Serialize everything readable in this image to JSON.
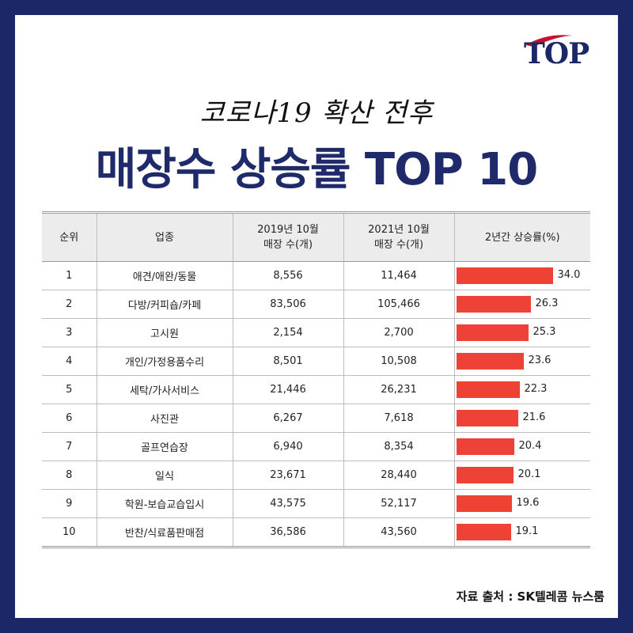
{
  "logo": {
    "text": "TOP"
  },
  "subtitle": "코로나19 확산 전후",
  "title": "매장수 상승률 TOP 10",
  "table": {
    "headers": {
      "rank": "순위",
      "business": "업종",
      "y2019_line1": "2019년 10월",
      "y2019_line2": "매장 수(개)",
      "y2021_line1": "2021년 10월",
      "y2021_line2": "매장 수(개)",
      "growth": "2년간 상승률(%)"
    },
    "rows": [
      {
        "rank": "1",
        "business": "애견/애완/동물",
        "y2019": "8,556",
        "y2021": "11,464",
        "growth": "34.0"
      },
      {
        "rank": "2",
        "business": "다방/커피숍/카페",
        "y2019": "83,506",
        "y2021": "105,466",
        "growth": "26.3"
      },
      {
        "rank": "3",
        "business": "고시원",
        "y2019": "2,154",
        "y2021": "2,700",
        "growth": "25.3"
      },
      {
        "rank": "4",
        "business": "개인/가정용품수리",
        "y2019": "8,501",
        "y2021": "10,508",
        "growth": "23.6"
      },
      {
        "rank": "5",
        "business": "세탁/가사서비스",
        "y2019": "21,446",
        "y2021": "26,231",
        "growth": "22.3"
      },
      {
        "rank": "6",
        "business": "사진관",
        "y2019": "6,267",
        "y2021": "7,618",
        "growth": "21.6"
      },
      {
        "rank": "7",
        "business": "골프연습장",
        "y2019": "6,940",
        "y2021": "8,354",
        "growth": "20.4"
      },
      {
        "rank": "8",
        "business": "일식",
        "y2019": "23,671",
        "y2021": "28,440",
        "growth": "20.1"
      },
      {
        "rank": "9",
        "business": "학원-보습교습입시",
        "y2019": "43,575",
        "y2021": "52,117",
        "growth": "19.6"
      },
      {
        "rank": "10",
        "business": "반찬/식료품판매점",
        "y2019": "36,586",
        "y2021": "43,560",
        "growth": "19.1"
      }
    ]
  },
  "chart_data": {
    "type": "bar",
    "categories": [
      "애견/애완/동물",
      "다방/커피숍/카페",
      "고시원",
      "개인/가정용품수리",
      "세탁/가사서비스",
      "사진관",
      "골프연습장",
      "일식",
      "학원-보습교습입시",
      "반찬/식료품판매점"
    ],
    "values": [
      34.0,
      26.3,
      25.3,
      23.6,
      22.3,
      21.6,
      20.4,
      20.1,
      19.6,
      19.1
    ],
    "title": "매장수 상승률 TOP 10",
    "xlabel": "",
    "ylabel": "2년간 상승률(%)",
    "bar_color": "#ef4236"
  },
  "source": "자료 출처 : SK텔레콤 뉴스룸",
  "colors": {
    "background": "#1b2766",
    "title": "#1f2a6b",
    "bar": "#ef4236",
    "logo_swoosh": "#c8102e"
  }
}
